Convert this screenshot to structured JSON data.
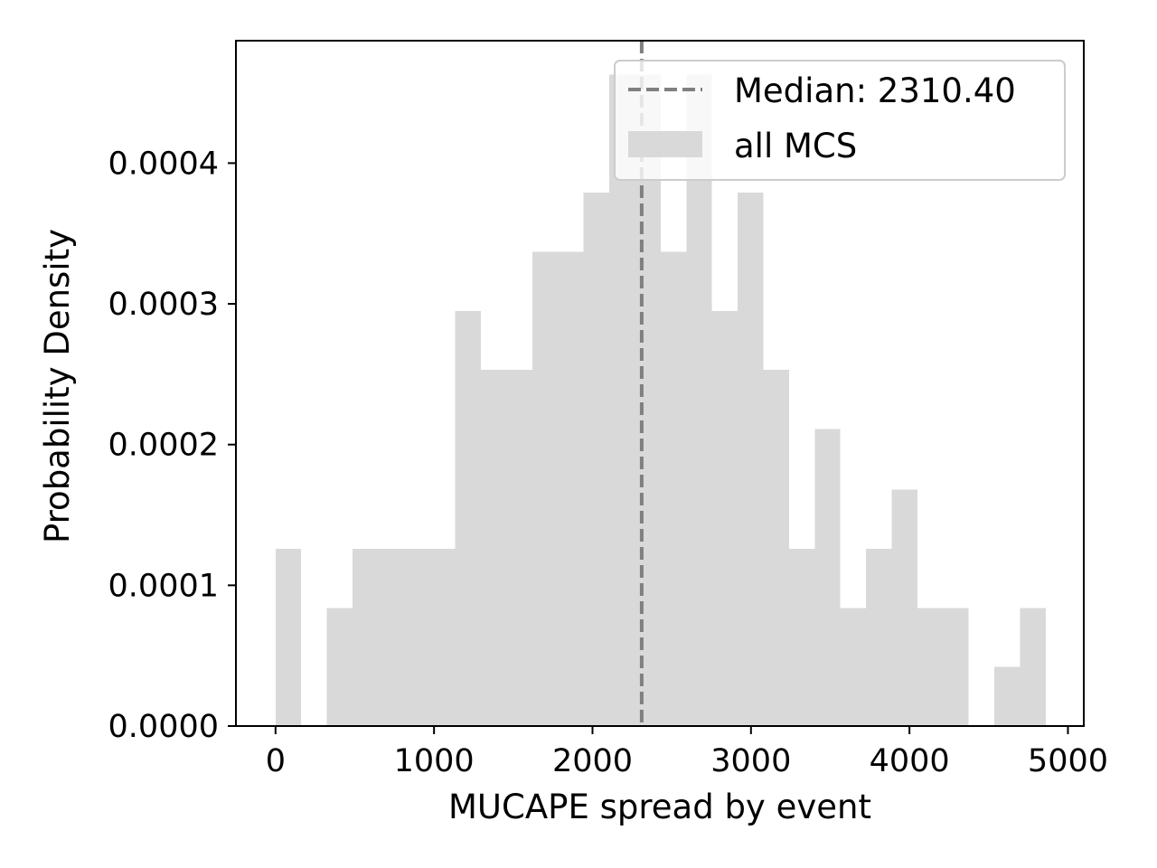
{
  "chart_data": {
    "type": "bar",
    "xlabel": "MUCAPE spread by event",
    "ylabel": "Probability Density",
    "xlim": [
      -250,
      5100
    ],
    "ylim": [
      0,
      0.000487
    ],
    "xticks": [
      0,
      1000,
      2000,
      3000,
      4000,
      5000
    ],
    "yticks": [
      0.0,
      0.0001,
      0.0002,
      0.0003,
      0.0004
    ],
    "xtick_labels": [
      "0",
      "1000",
      "2000",
      "3000",
      "4000",
      "5000"
    ],
    "ytick_labels": [
      "0.0000",
      "0.0001",
      "0.0002",
      "0.0003",
      "0.0004"
    ],
    "grid": false,
    "series": [
      {
        "name": "all MCS",
        "color": "#d9d9d9",
        "bins": [
          {
            "x0": 0,
            "x1": 162,
            "value": 0.000126
          },
          {
            "x0": 162,
            "x1": 324,
            "value": 0.0
          },
          {
            "x0": 324,
            "x1": 486,
            "value": 8.4e-05
          },
          {
            "x0": 486,
            "x1": 1134,
            "value": 0.000126
          },
          {
            "x0": 1134,
            "x1": 1296,
            "value": 0.000295
          },
          {
            "x0": 1296,
            "x1": 1620,
            "value": 0.000253
          },
          {
            "x0": 1620,
            "x1": 1944,
            "value": 0.000337
          },
          {
            "x0": 1944,
            "x1": 2106,
            "value": 0.000379
          },
          {
            "x0": 2106,
            "x1": 2430,
            "value": 0.000463
          },
          {
            "x0": 2430,
            "x1": 2592,
            "value": 0.000337
          },
          {
            "x0": 2592,
            "x1": 2754,
            "value": 0.000463
          },
          {
            "x0": 2754,
            "x1": 2916,
            "value": 0.000295
          },
          {
            "x0": 2916,
            "x1": 3078,
            "value": 0.000379
          },
          {
            "x0": 3078,
            "x1": 3240,
            "value": 0.000253
          },
          {
            "x0": 3240,
            "x1": 3402,
            "value": 0.000126
          },
          {
            "x0": 3402,
            "x1": 3564,
            "value": 0.000211
          },
          {
            "x0": 3564,
            "x1": 3726,
            "value": 8.4e-05
          },
          {
            "x0": 3726,
            "x1": 3888,
            "value": 0.000126
          },
          {
            "x0": 3888,
            "x1": 4050,
            "value": 0.000168
          },
          {
            "x0": 4050,
            "x1": 4374,
            "value": 8.4e-05
          },
          {
            "x0": 4374,
            "x1": 4536,
            "value": 0.0
          },
          {
            "x0": 4536,
            "x1": 4698,
            "value": 4.2e-05
          },
          {
            "x0": 4698,
            "x1": 4860,
            "value": 8.4e-05
          }
        ]
      }
    ],
    "median": {
      "value": 2310.4,
      "label": "Median: 2310.40",
      "color": "#808080",
      "style": "dashed"
    },
    "legend": {
      "placement": "top-right",
      "entries": [
        "Median: 2310.40",
        "all MCS"
      ]
    }
  }
}
